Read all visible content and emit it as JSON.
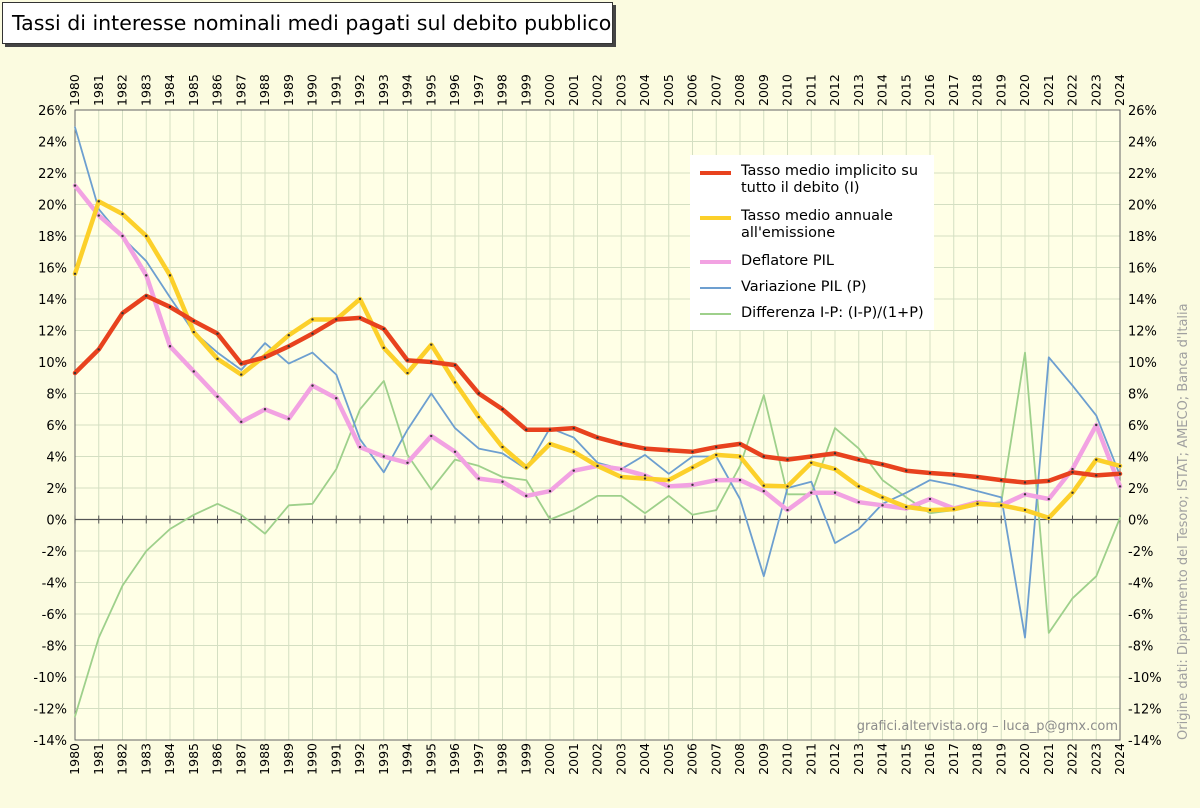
{
  "chart_data": {
    "type": "line",
    "title": "Tassi di interesse nominali medi pagati sul debito pubblico",
    "x": [
      1980,
      1981,
      1982,
      1983,
      1984,
      1985,
      1986,
      1987,
      1988,
      1989,
      1990,
      1991,
      1992,
      1993,
      1994,
      1995,
      1996,
      1997,
      1998,
      1999,
      2000,
      2001,
      2002,
      2003,
      2004,
      2005,
      2006,
      2007,
      2008,
      2009,
      2010,
      2011,
      2012,
      2013,
      2014,
      2015,
      2016,
      2017,
      2018,
      2019,
      2020,
      2021,
      2022,
      2023,
      2024
    ],
    "ylim": [
      -14,
      26
    ],
    "yticks": [
      "26%",
      "24%",
      "22%",
      "20%",
      "18%",
      "16%",
      "14%",
      "12%",
      "10%",
      "8%",
      "6%",
      "4%",
      "2%",
      "0%",
      "-2%",
      "-4%",
      "-6%",
      "-8%",
      "-10%",
      "-12%",
      "-14%"
    ],
    "grid": true,
    "series": [
      {
        "name": "Tasso medio implicito su tutto il debito (I)",
        "color": "#e8421e",
        "width": 4.5,
        "values": [
          9.3,
          10.8,
          13.1,
          14.2,
          13.5,
          12.6,
          11.8,
          9.9,
          10.3,
          11.0,
          11.8,
          12.7,
          12.8,
          12.1,
          10.1,
          10.0,
          9.8,
          8.0,
          7.0,
          5.7,
          5.7,
          5.8,
          5.2,
          4.8,
          4.5,
          4.4,
          4.3,
          4.6,
          4.8,
          4.0,
          3.8,
          4.0,
          4.2,
          3.8,
          3.5,
          3.1,
          2.95,
          2.85,
          2.7,
          2.5,
          2.35,
          2.45,
          3.0,
          2.8,
          2.9
        ]
      },
      {
        "name": "Tasso medio annuale all'emissione",
        "color": "#fcd02a",
        "width": 4.5,
        "values": [
          15.6,
          20.2,
          19.4,
          18.0,
          15.5,
          11.9,
          10.2,
          9.2,
          10.4,
          11.7,
          12.7,
          12.7,
          14.0,
          10.9,
          9.3,
          11.1,
          8.7,
          6.5,
          4.6,
          3.3,
          4.8,
          4.3,
          3.4,
          2.7,
          2.6,
          2.5,
          3.3,
          4.1,
          4.0,
          2.15,
          2.1,
          3.6,
          3.2,
          2.1,
          1.4,
          0.8,
          0.6,
          0.65,
          1.0,
          0.9,
          0.6,
          0.1,
          1.7,
          3.8,
          3.4
        ]
      },
      {
        "name": "Deflatore PIL",
        "color": "#f2a2e2",
        "width": 4.5,
        "values": [
          21.2,
          19.3,
          18.0,
          15.5,
          11.0,
          9.4,
          7.8,
          6.2,
          7.0,
          6.4,
          8.5,
          7.7,
          4.6,
          4.0,
          3.6,
          5.3,
          4.3,
          2.6,
          2.4,
          1.5,
          1.8,
          3.1,
          3.4,
          3.2,
          2.8,
          2.1,
          2.2,
          2.5,
          2.5,
          1.8,
          0.6,
          1.7,
          1.7,
          1.1,
          0.9,
          0.7,
          1.3,
          0.7,
          1.1,
          0.9,
          1.6,
          1.3,
          3.2,
          6.0,
          2.1
        ]
      },
      {
        "name": "Variazione PIL (P)",
        "color": "#6d9fd0",
        "width": 1.8,
        "values": [
          24.9,
          19.7,
          17.9,
          16.4,
          14.1,
          11.9,
          10.6,
          9.5,
          11.2,
          9.9,
          10.6,
          9.2,
          5.1,
          3.0,
          5.7,
          8.0,
          5.8,
          4.5,
          4.2,
          3.2,
          5.8,
          5.2,
          3.6,
          3.2,
          4.1,
          2.9,
          4.0,
          4.0,
          1.3,
          -3.6,
          2.0,
          2.4,
          -1.5,
          -0.6,
          1.0,
          1.7,
          2.5,
          2.2,
          1.8,
          1.4,
          -7.5,
          10.3,
          8.5,
          6.6,
          2.8
        ]
      },
      {
        "name": "Differenza I-P: (I-P)/(1+P)",
        "color": "#9ed08b",
        "width": 1.8,
        "values": [
          -12.5,
          -7.5,
          -4.2,
          -2.0,
          -0.6,
          0.3,
          1.0,
          0.3,
          -0.9,
          0.9,
          1.0,
          3.2,
          7.0,
          8.8,
          4.1,
          1.9,
          3.8,
          3.4,
          2.7,
          2.5,
          0.0,
          0.6,
          1.5,
          1.5,
          0.4,
          1.5,
          0.3,
          0.6,
          3.4,
          7.9,
          1.6,
          1.6,
          5.8,
          4.5,
          2.5,
          1.4,
          0.4,
          0.6,
          0.9,
          1.1,
          10.6,
          -7.2,
          -5.0,
          -3.6,
          0.1
        ]
      }
    ]
  },
  "watermark": "grafici.altervista.org – luca_p@gmx.com",
  "source_note": "Origine dati: Dipartimento del Tesoro; ISTAT; AMECO; Banca d'Italia",
  "legend": {
    "item1_line1": "Tasso medio implicito su",
    "item1_line2": "tutto il debito (I)",
    "item2_line1": "Tasso medio annuale",
    "item2_line2": "all'emissione",
    "item3": "Deflatore PIL",
    "item4": "Variazione PIL (P)",
    "item5": "Differenza I-P: (I-P)/(1+P)"
  }
}
